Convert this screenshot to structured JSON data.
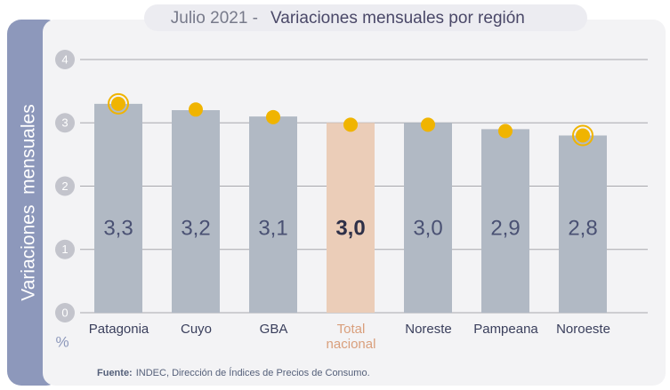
{
  "chart_data": {
    "type": "bar",
    "title_prefix": "Julio 2021 -",
    "title": "Variaciones mensuales por región",
    "y_label": "Variaciones  mensuales",
    "y_unit": "%",
    "categories": [
      "Patagonia",
      "Cuyo",
      "GBA",
      "Total nacional",
      "Noreste",
      "Pampeana",
      "Noroeste"
    ],
    "values": [
      3.3,
      3.2,
      3.1,
      3.0,
      3.0,
      2.9,
      2.8
    ],
    "value_labels": [
      "3,3",
      "3,2",
      "3,1",
      "3,0",
      "3,0",
      "2,9",
      "2,8"
    ],
    "markers": [
      3.3,
      3.21,
      3.09,
      2.97,
      2.97,
      2.87,
      2.8
    ],
    "ringed_markers": [
      true,
      false,
      false,
      false,
      false,
      false,
      true
    ],
    "color": "#b1b9c4",
    "highlight_index": 3,
    "highlight_color": "#ebcdb8",
    "marker_color": "#f0b400",
    "ylim": [
      0,
      4
    ],
    "yticks": [
      0,
      1,
      2,
      3,
      4
    ],
    "grid": true,
    "source_label": "Fuente:",
    "source": "INDEC, Dirección de Índices de Precios de Consumo."
  }
}
